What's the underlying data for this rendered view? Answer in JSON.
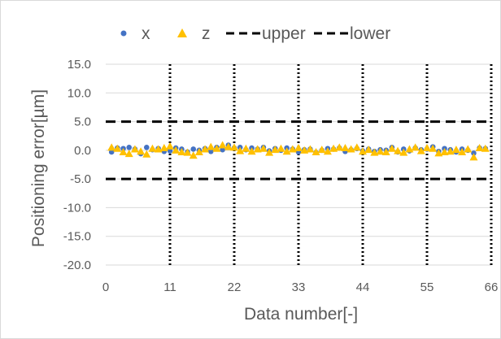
{
  "chart_data": {
    "type": "scatter",
    "title": "",
    "xlabel": "Data number[-]",
    "ylabel": "Positioning error[µm]",
    "xlim": [
      0,
      66
    ],
    "ylim": [
      -20,
      15
    ],
    "x_ticks": [
      "0",
      "11",
      "22",
      "33",
      "44",
      "55",
      "66"
    ],
    "y_ticks": [
      "15.0",
      "10.0",
      "5.0",
      "0.0",
      "-5.0",
      "-10.0",
      "-15.0",
      "-20.0"
    ],
    "legend_position": "top",
    "vertical_dotted_lines_at": [
      11,
      22,
      33,
      44,
      55,
      66
    ],
    "series": [
      {
        "name": "x",
        "marker": "circle",
        "color": "#4472c4",
        "x": [
          1,
          2,
          3,
          4,
          5,
          6,
          7,
          8,
          9,
          10,
          11,
          12,
          13,
          14,
          15,
          16,
          17,
          18,
          19,
          20,
          21,
          22,
          23,
          24,
          25,
          26,
          27,
          28,
          29,
          30,
          31,
          32,
          33,
          34,
          35,
          36,
          37,
          38,
          39,
          40,
          41,
          42,
          43,
          44,
          45,
          46,
          47,
          48,
          49,
          50,
          51,
          52,
          53,
          54,
          55,
          56,
          57,
          58,
          59,
          60,
          61,
          62,
          63,
          64,
          65
        ],
        "y": [
          -0.3,
          0.4,
          0.3,
          0.5,
          0.2,
          -0.6,
          0.5,
          0.1,
          0.3,
          -0.2,
          -0.1,
          0.4,
          0.2,
          -0.3,
          0.2,
          0.0,
          0.3,
          -0.2,
          0.5,
          0.1,
          0.9,
          0.4,
          0.5,
          0.1,
          0.4,
          0.2,
          0.5,
          -0.1,
          0.3,
          0.0,
          0.4,
          0.2,
          -0.3,
          0.1,
          0.2,
          -0.4,
          0.0,
          0.3,
          0.2,
          0.4,
          -0.2,
          0.1,
          0.3,
          -0.1,
          0.2,
          -0.2,
          0.1,
          0.0,
          0.5,
          -0.3,
          0.2,
          -0.1,
          0.4,
          0.1,
          0.2,
          0.6,
          -0.2,
          0.3,
          0.1,
          -0.3,
          0.2,
          0.0,
          -0.5,
          0.4,
          0.3
        ]
      },
      {
        "name": "z",
        "marker": "triangle",
        "color": "#ffc000",
        "x": [
          1,
          2,
          3,
          4,
          5,
          6,
          7,
          8,
          9,
          10,
          11,
          12,
          13,
          14,
          15,
          16,
          17,
          18,
          19,
          20,
          21,
          22,
          23,
          24,
          25,
          26,
          27,
          28,
          29,
          30,
          31,
          32,
          33,
          34,
          35,
          36,
          37,
          38,
          39,
          40,
          41,
          42,
          43,
          44,
          45,
          46,
          47,
          48,
          49,
          50,
          51,
          52,
          53,
          54,
          55,
          56,
          57,
          58,
          59,
          60,
          61,
          62,
          63,
          64,
          65
        ],
        "y": [
          0.5,
          0.3,
          -0.3,
          -0.6,
          0.2,
          -0.2,
          -0.7,
          0.3,
          0.2,
          0.4,
          0.7,
          0.0,
          -0.3,
          -0.4,
          -0.9,
          -0.3,
          0.2,
          0.6,
          0.3,
          0.9,
          0.6,
          0.5,
          -0.1,
          0.3,
          -0.2,
          0.2,
          0.3,
          -0.4,
          0.1,
          0.3,
          -0.2,
          0.2,
          0.4,
          0.0,
          0.2,
          -0.3,
          0.1,
          -0.2,
          0.3,
          0.5,
          0.4,
          0.2,
          0.5,
          -0.2,
          0.1,
          -0.4,
          -0.2,
          -0.3,
          0.3,
          -0.1,
          -0.4,
          0.2,
          0.5,
          -0.1,
          0.4,
          0.3,
          -0.5,
          -0.3,
          -0.2,
          0.1,
          -0.3,
          0.2,
          -1.2,
          0.4,
          0.3
        ]
      },
      {
        "name": "upper",
        "line": "dashed",
        "color": "#000000",
        "value": 5.0
      },
      {
        "name": "lower",
        "line": "dashed",
        "color": "#000000",
        "value": -5.0
      }
    ]
  }
}
